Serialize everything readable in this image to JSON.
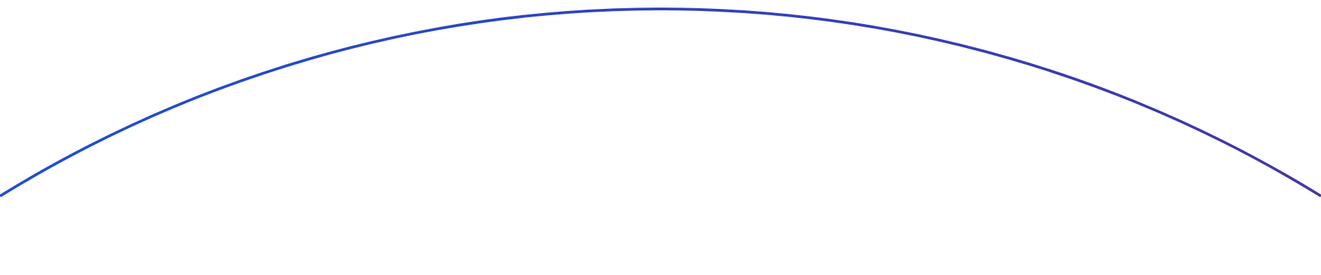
{
  "arc": {
    "color_start": "#1f4fd1",
    "color_end": "#4338a8"
  }
}
